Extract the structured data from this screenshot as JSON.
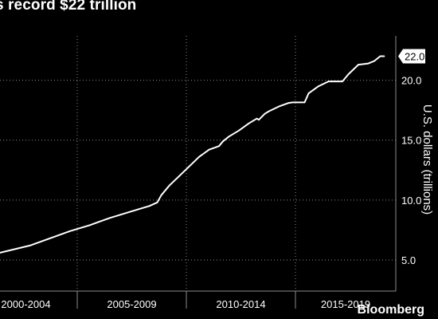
{
  "title": "s record $22 trillion",
  "brand": "Bloomberg",
  "chart_data": {
    "type": "line",
    "ylabel": "U.S. dollars (trillions)",
    "ylim": [
      2.4,
      23.7
    ],
    "y_ticks": [
      5.0,
      10.0,
      15.0,
      20.0
    ],
    "y_tick_labels": [
      "5.0",
      "10.0",
      "15.0",
      "20.0"
    ],
    "x_period_labels": [
      "2000-2004",
      "2005-2009",
      "2010-2014",
      "2015-2019"
    ],
    "xlim": [
      2000.5,
      2019.9
    ],
    "grid": true,
    "end_value_label": "22.0",
    "series": [
      {
        "x": [
          2000.5,
          2001.0,
          2002.0,
          2003.0,
          2004.0,
          2005.0,
          2006.0,
          2007.0,
          2008.0,
          2008.4,
          2008.6,
          2008.8,
          2009.0,
          2009.5,
          2010.0,
          2010.5,
          2011.0,
          2011.5,
          2011.7,
          2012.0,
          2012.5,
          2013.0,
          2013.4,
          2013.5,
          2013.8,
          2014.0,
          2014.5,
          2015.0,
          2015.2,
          2015.5,
          2015.8,
          2016.0,
          2016.5,
          2017.0,
          2017.2,
          2017.7,
          2018.0,
          2018.5,
          2019.0,
          2019.3,
          2019.6,
          2019.8
        ],
        "y": [
          5.6,
          5.8,
          6.2,
          6.8,
          7.4,
          7.9,
          8.5,
          9.0,
          9.5,
          9.8,
          10.4,
          10.8,
          11.2,
          12.0,
          12.8,
          13.6,
          14.2,
          14.5,
          14.9,
          15.3,
          15.8,
          16.4,
          16.8,
          16.7,
          17.2,
          17.4,
          17.8,
          18.1,
          18.15,
          18.15,
          18.15,
          18.9,
          19.5,
          19.9,
          19.9,
          19.9,
          20.5,
          21.3,
          21.4,
          21.6,
          22.0,
          22.0
        ]
      }
    ]
  }
}
